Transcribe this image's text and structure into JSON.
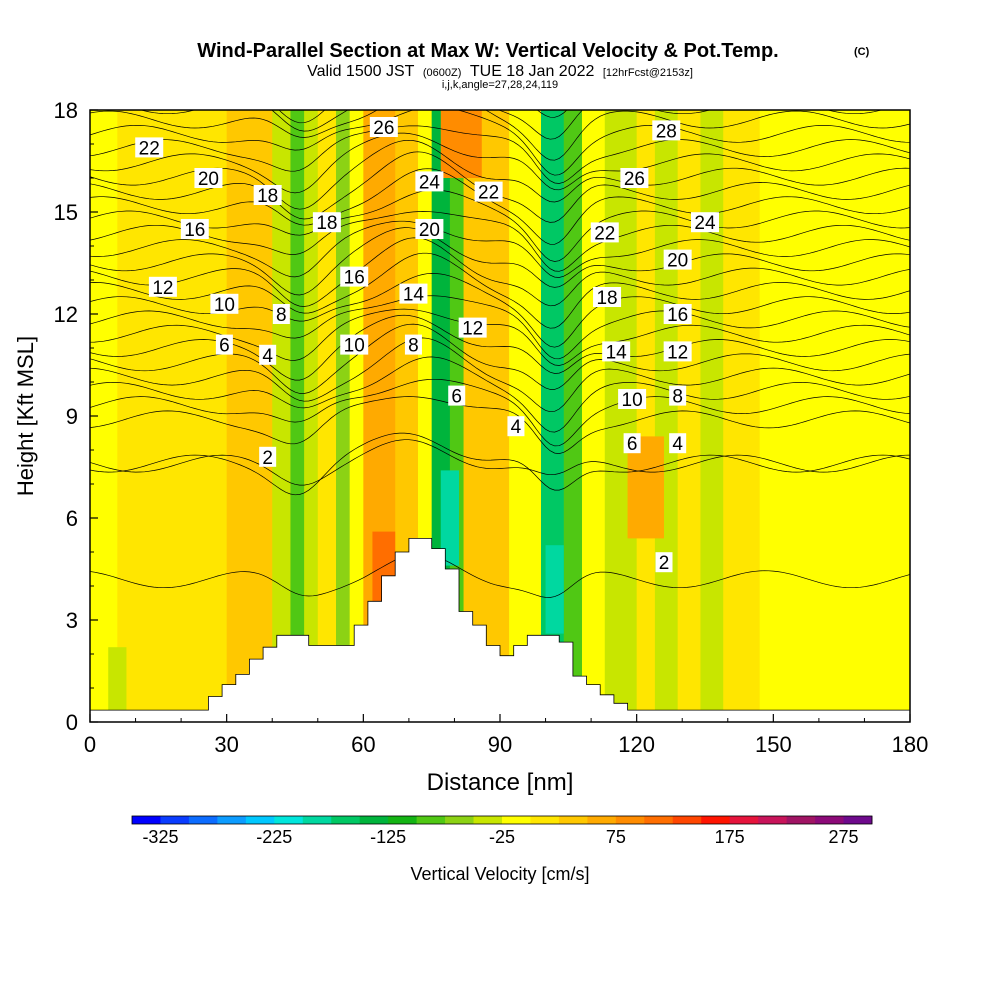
{
  "chart_data": {
    "type": "heatmap",
    "title_main": "Wind-Parallel Section at Max W: Vertical Velocity & Pot.Temp.",
    "title_tag": "(C)",
    "subtitle_a": "Valid 1500 JST",
    "subtitle_b": "(0600Z)",
    "subtitle_c": "TUE 18 Jan 2022",
    "subtitle_d": "[12hrFcst@2153z]",
    "subtitle_e": "i,j,k,angle=27,28,24,119",
    "xlabel": "Distance [nm]",
    "ylabel": "Height [Kft MSL]",
    "xlim": [
      0,
      180
    ],
    "ylim": [
      0,
      18
    ],
    "xticks": [
      0,
      30,
      60,
      90,
      120,
      150,
      180
    ],
    "yticks": [
      0,
      3,
      6,
      9,
      12,
      15,
      18
    ],
    "colorbar_label": "Vertical Velocity [cm/s]",
    "colorbar_ticks": [
      -325,
      -225,
      -125,
      -25,
      75,
      175,
      275
    ],
    "colorbar_range": [
      -350,
      300
    ],
    "colorbar_colors": [
      "#0000ff",
      "#0a3cff",
      "#0c6cff",
      "#0c9cff",
      "#00c8ff",
      "#00e6dc",
      "#00d8a0",
      "#00c864",
      "#00b43c",
      "#14b414",
      "#50c814",
      "#8cd214",
      "#c8e600",
      "#ffff00",
      "#ffe600",
      "#ffc800",
      "#ffaa00",
      "#ff8c00",
      "#ff6e00",
      "#ff4600",
      "#ff1400",
      "#e6143c",
      "#c8145a",
      "#a01464",
      "#8c0a78",
      "#6e0a8c"
    ],
    "terrain": [
      [
        0,
        0.35
      ],
      [
        26,
        0.35
      ],
      [
        26,
        0.75
      ],
      [
        29,
        0.75
      ],
      [
        29,
        1.1
      ],
      [
        32,
        1.1
      ],
      [
        32,
        1.4
      ],
      [
        35,
        1.4
      ],
      [
        35,
        1.85
      ],
      [
        38,
        1.85
      ],
      [
        38,
        2.2
      ],
      [
        41,
        2.2
      ],
      [
        41,
        2.55
      ],
      [
        48,
        2.55
      ],
      [
        48,
        2.25
      ],
      [
        58,
        2.25
      ],
      [
        58,
        2.85
      ],
      [
        61,
        2.85
      ],
      [
        61,
        3.55
      ],
      [
        64,
        3.55
      ],
      [
        64,
        4.3
      ],
      [
        67,
        4.3
      ],
      [
        67,
        5.0
      ],
      [
        70,
        5.0
      ],
      [
        70,
        5.4
      ],
      [
        75,
        5.4
      ],
      [
        75,
        5.1
      ],
      [
        78,
        5.1
      ],
      [
        78,
        4.5
      ],
      [
        81,
        4.5
      ],
      [
        81,
        3.25
      ],
      [
        84,
        3.25
      ],
      [
        84,
        2.85
      ],
      [
        87,
        2.85
      ],
      [
        87,
        2.25
      ],
      [
        90,
        2.25
      ],
      [
        90,
        1.95
      ],
      [
        93,
        1.95
      ],
      [
        93,
        2.25
      ],
      [
        96,
        2.25
      ],
      [
        96,
        2.55
      ],
      [
        103,
        2.55
      ],
      [
        103,
        2.35
      ],
      [
        106,
        2.35
      ],
      [
        106,
        1.35
      ],
      [
        109,
        1.35
      ],
      [
        109,
        1.1
      ],
      [
        112,
        1.1
      ],
      [
        112,
        0.8
      ],
      [
        115,
        0.8
      ],
      [
        115,
        0.55
      ],
      [
        118,
        0.55
      ],
      [
        118,
        0.35
      ],
      [
        180,
        0.35
      ]
    ],
    "w_bands": [
      {
        "x0": 0,
        "x1": 6,
        "value": -10
      },
      {
        "x0": 6,
        "x1": 30,
        "value": 10
      },
      {
        "x0": 30,
        "x1": 40,
        "value": 45
      },
      {
        "x0": 40,
        "x1": 44,
        "value": -40
      },
      {
        "x0": 44,
        "x1": 47,
        "value": -95
      },
      {
        "x0": 47,
        "x1": 50,
        "value": -50
      },
      {
        "x0": 50,
        "x1": 54,
        "value": 20
      },
      {
        "x0": 54,
        "x1": 57,
        "value": -60
      },
      {
        "x0": 57,
        "x1": 60,
        "value": -25
      },
      {
        "x0": 60,
        "x1": 67,
        "value": 60
      },
      {
        "x0": 67,
        "x1": 72,
        "value": 40
      },
      {
        "x0": 72,
        "x1": 75,
        "value": -20
      },
      {
        "x0": 75,
        "x1": 79,
        "value": -150
      },
      {
        "x0": 79,
        "x1": 82,
        "value": -80
      },
      {
        "x0": 82,
        "x1": 86,
        "value": 30
      },
      {
        "x0": 86,
        "x1": 92,
        "value": 45
      },
      {
        "x0": 92,
        "x1": 99,
        "value": -20
      },
      {
        "x0": 99,
        "x1": 104,
        "value": -170
      },
      {
        "x0": 104,
        "x1": 108,
        "value": -80
      },
      {
        "x0": 108,
        "x1": 113,
        "value": -15
      },
      {
        "x0": 113,
        "x1": 120,
        "value": -45
      },
      {
        "x0": 120,
        "x1": 124,
        "value": 25
      },
      {
        "x0": 124,
        "x1": 129,
        "value": -35
      },
      {
        "x0": 129,
        "x1": 134,
        "value": 25
      },
      {
        "x0": 134,
        "x1": 139,
        "value": -45
      },
      {
        "x0": 139,
        "x1": 147,
        "value": 5
      },
      {
        "x0": 147,
        "x1": 157,
        "value": -15
      },
      {
        "x0": 157,
        "x1": 165,
        "value": -25
      },
      {
        "x0": 165,
        "x1": 180,
        "value": -20
      }
    ],
    "w_patches": [
      {
        "x0": 62,
        "x1": 67,
        "y0": 3.4,
        "y1": 5.6,
        "value": 110
      },
      {
        "x0": 77,
        "x1": 81,
        "y0": 4.6,
        "y1": 7.4,
        "value": -190
      },
      {
        "x0": 100,
        "x1": 104,
        "y0": 2.6,
        "y1": 5.2,
        "value": -200
      },
      {
        "x0": 77,
        "x1": 86,
        "y0": 16,
        "y1": 18,
        "value": 80
      },
      {
        "x0": 118,
        "x1": 126,
        "y0": 5.4,
        "y1": 8.4,
        "value": 70
      },
      {
        "x0": 4,
        "x1": 8,
        "y0": 0.3,
        "y1": 2.2,
        "value": -45
      }
    ],
    "theta_labels": [
      {
        "text": "22",
        "x": 13,
        "y": 16.9
      },
      {
        "text": "20",
        "x": 26,
        "y": 16.0
      },
      {
        "text": "18",
        "x": 39,
        "y": 15.5
      },
      {
        "text": "16",
        "x": 23,
        "y": 14.5
      },
      {
        "text": "12",
        "x": 16,
        "y": 12.8
      },
      {
        "text": "10",
        "x": 29.5,
        "y": 12.3
      },
      {
        "text": "8",
        "x": 42,
        "y": 12.0
      },
      {
        "text": "6",
        "x": 29.5,
        "y": 11.1
      },
      {
        "text": "4",
        "x": 39,
        "y": 10.8
      },
      {
        "text": "2",
        "x": 39,
        "y": 7.8
      },
      {
        "text": "26",
        "x": 64.5,
        "y": 17.5
      },
      {
        "text": "18",
        "x": 52,
        "y": 14.7
      },
      {
        "text": "16",
        "x": 58,
        "y": 13.1
      },
      {
        "text": "10",
        "x": 58,
        "y": 11.1
      },
      {
        "text": "24",
        "x": 74.5,
        "y": 15.9
      },
      {
        "text": "22",
        "x": 87.5,
        "y": 15.6
      },
      {
        "text": "20",
        "x": 74.5,
        "y": 14.5
      },
      {
        "text": "14",
        "x": 71,
        "y": 12.6
      },
      {
        "text": "8",
        "x": 71,
        "y": 11.1
      },
      {
        "text": "12",
        "x": 84,
        "y": 11.6
      },
      {
        "text": "6",
        "x": 80.5,
        "y": 9.6
      },
      {
        "text": "4",
        "x": 93.5,
        "y": 8.7
      },
      {
        "text": "28",
        "x": 126.5,
        "y": 17.4
      },
      {
        "text": "26",
        "x": 119.5,
        "y": 16.0
      },
      {
        "text": "24",
        "x": 135,
        "y": 14.7
      },
      {
        "text": "22",
        "x": 113,
        "y": 14.4
      },
      {
        "text": "20",
        "x": 129,
        "y": 13.6
      },
      {
        "text": "18",
        "x": 113.5,
        "y": 12.5
      },
      {
        "text": "16",
        "x": 129,
        "y": 12.0
      },
      {
        "text": "14",
        "x": 115.5,
        "y": 10.9
      },
      {
        "text": "12",
        "x": 129,
        "y": 10.9
      },
      {
        "text": "10",
        "x": 119,
        "y": 9.5
      },
      {
        "text": "8",
        "x": 129,
        "y": 9.6
      },
      {
        "text": "6",
        "x": 119,
        "y": 8.2
      },
      {
        "text": "4",
        "x": 129,
        "y": 8.2
      },
      {
        "text": "2",
        "x": 126,
        "y": 4.7
      }
    ]
  }
}
